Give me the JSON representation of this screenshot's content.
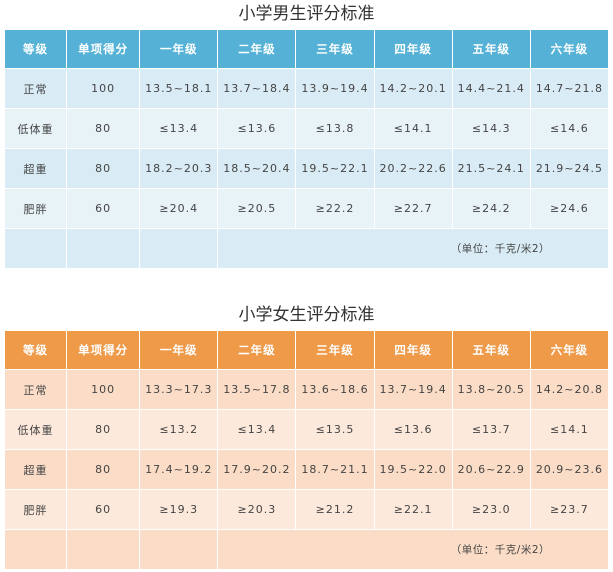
{
  "columns": [
    "等级",
    "单项得分",
    "一年级",
    "二年级",
    "三年级",
    "四年级",
    "五年级",
    "六年级"
  ],
  "boys": {
    "title": "小学男生评分标准",
    "rows": [
      [
        "正常",
        "100",
        "13.5~18.1",
        "13.7~18.4",
        "13.9~19.4",
        "14.2~20.1",
        "14.4~21.4",
        "14.7~21.8"
      ],
      [
        "低体重",
        "80",
        "≤13.4",
        "≤13.6",
        "≤13.8",
        "≤14.1",
        "≤14.3",
        "≤14.6"
      ],
      [
        "超重",
        "80",
        "18.2~20.3",
        "18.5~20.4",
        "19.5~22.1",
        "20.2~22.6",
        "21.5~24.1",
        "21.9~24.5"
      ],
      [
        "肥胖",
        "60",
        "≥20.4",
        "≥20.5",
        "≥22.2",
        "≥22.7",
        "≥24.2",
        "≥24.6"
      ]
    ],
    "note": "（单位：千克/米2）"
  },
  "girls": {
    "title": "小学女生评分标准",
    "rows": [
      [
        "正常",
        "100",
        "13.3~17.3",
        "13.5~17.8",
        "13.6~18.6",
        "13.7~19.4",
        "13.8~20.5",
        "14.2~20.8"
      ],
      [
        "低体重",
        "80",
        "≤13.2",
        "≤13.4",
        "≤13.5",
        "≤13.6",
        "≤13.7",
        "≤14.1"
      ],
      [
        "超重",
        "80",
        "17.4~19.2",
        "17.9~20.2",
        "18.7~21.1",
        "19.5~22.0",
        "20.6~22.9",
        "20.9~23.6"
      ],
      [
        "肥胖",
        "60",
        "≥19.3",
        "≥20.3",
        "≥21.2",
        "≥22.1",
        "≥23.0",
        "≥23.7"
      ]
    ],
    "note": "（单位：千克/米2）"
  }
}
